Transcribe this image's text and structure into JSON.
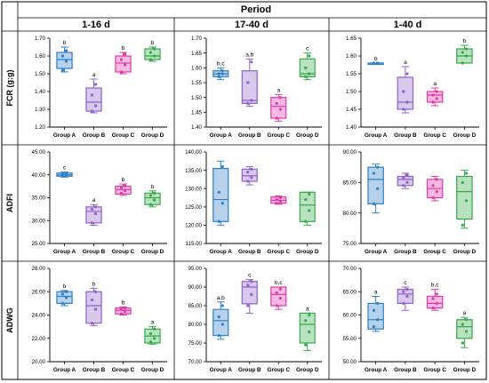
{
  "header": {
    "title": "Period"
  },
  "row_labels": [
    "FCR (g:g)",
    "ADFI",
    "ADWG"
  ],
  "col_labels": [
    "1-16 d",
    "17-40 d",
    "1-40 d"
  ],
  "colors": {
    "Group A": "#2f7fc4",
    "Group B": "#8f62c7",
    "Group C": "#de3aa8",
    "Group D": "#35a84a"
  },
  "chart_data": [
    {
      "type": "box",
      "row": 0,
      "col": 0,
      "ylim": [
        1.2,
        1.7
      ],
      "ticks": [
        1.2,
        1.3,
        1.4,
        1.5,
        1.6,
        1.7
      ],
      "decimals": 2,
      "categories": [
        "Group A",
        "Group B",
        "Group C",
        "Group D"
      ],
      "boxes": [
        {
          "q1": 1.53,
          "median": 1.58,
          "q3": 1.62,
          "min": 1.51,
          "max": 1.65,
          "points": [
            1.52,
            1.57,
            1.6,
            1.63
          ],
          "letter": "b"
        },
        {
          "q1": 1.29,
          "median": 1.34,
          "q3": 1.42,
          "min": 1.28,
          "max": 1.47,
          "points": [
            1.29,
            1.32,
            1.38,
            1.44
          ],
          "letter": "a"
        },
        {
          "q1": 1.51,
          "median": 1.56,
          "q3": 1.6,
          "min": 1.5,
          "max": 1.62,
          "points": [
            1.51,
            1.55,
            1.58,
            1.61
          ],
          "letter": "b"
        },
        {
          "q1": 1.58,
          "median": 1.6,
          "q3": 1.64,
          "min": 1.57,
          "max": 1.65,
          "points": [
            1.58,
            1.6,
            1.62,
            1.64
          ],
          "letter": "b"
        }
      ]
    },
    {
      "type": "box",
      "row": 0,
      "col": 1,
      "ylim": [
        1.4,
        1.7
      ],
      "ticks": [
        1.4,
        1.45,
        1.5,
        1.55,
        1.6,
        1.65,
        1.7
      ],
      "decimals": 2,
      "categories": [
        "Group A",
        "Group B",
        "Group C",
        "Group D"
      ],
      "boxes": [
        {
          "q1": 1.57,
          "median": 1.58,
          "q3": 1.59,
          "min": 1.56,
          "max": 1.6,
          "points": [
            1.57,
            1.58,
            1.58,
            1.59
          ],
          "letter": "b,c"
        },
        {
          "q1": 1.48,
          "median": 1.49,
          "q3": 1.59,
          "min": 1.47,
          "max": 1.63,
          "points": [
            1.48,
            1.49,
            1.55,
            1.62
          ],
          "letter": "a,b"
        },
        {
          "q1": 1.43,
          "median": 1.47,
          "q3": 1.5,
          "min": 1.42,
          "max": 1.51,
          "points": [
            1.43,
            1.46,
            1.48,
            1.5
          ],
          "letter": "a"
        },
        {
          "q1": 1.57,
          "median": 1.58,
          "q3": 1.63,
          "min": 1.56,
          "max": 1.65,
          "points": [
            1.57,
            1.58,
            1.6,
            1.64
          ],
          "letter": "c"
        }
      ]
    },
    {
      "type": "box",
      "row": 0,
      "col": 2,
      "ylim": [
        1.4,
        1.65
      ],
      "ticks": [
        1.4,
        1.45,
        1.5,
        1.55,
        1.6,
        1.65
      ],
      "decimals": 2,
      "categories": [
        "Group A",
        "Group B",
        "Group C",
        "Group D"
      ],
      "boxes": [
        {
          "q1": 1.58,
          "median": 1.58,
          "q3": 1.58,
          "min": 1.58,
          "max": 1.58,
          "points": [
            1.58,
            1.58,
            1.58,
            1.58
          ],
          "letter": "b"
        },
        {
          "q1": 1.45,
          "median": 1.47,
          "q3": 1.54,
          "min": 1.44,
          "max": 1.57,
          "points": [
            1.45,
            1.47,
            1.5,
            1.55
          ],
          "letter": "a"
        },
        {
          "q1": 1.47,
          "median": 1.49,
          "q3": 1.5,
          "min": 1.46,
          "max": 1.51,
          "points": [
            1.47,
            1.48,
            1.49,
            1.5
          ],
          "letter": "a"
        },
        {
          "q1": 1.58,
          "median": 1.6,
          "q3": 1.62,
          "min": 1.58,
          "max": 1.63,
          "points": [
            1.58,
            1.6,
            1.61,
            1.62
          ],
          "letter": "b"
        }
      ]
    },
    {
      "type": "box",
      "row": 1,
      "col": 0,
      "ylim": [
        25.0,
        45.0
      ],
      "ticks": [
        25.0,
        30.0,
        35.0,
        40.0,
        45.0
      ],
      "decimals": 2,
      "categories": [
        "Group A",
        "Group B",
        "Group C",
        "Group D"
      ],
      "boxes": [
        {
          "q1": 39.7,
          "median": 40.0,
          "q3": 40.4,
          "min": 39.5,
          "max": 40.6,
          "points": [
            39.7,
            40.0,
            40.2,
            40.4
          ],
          "letter": "c"
        },
        {
          "q1": 29.5,
          "median": 32.0,
          "q3": 33.0,
          "min": 29.0,
          "max": 33.5,
          "points": [
            29.5,
            31.5,
            32.5,
            33.0
          ],
          "letter": "a"
        },
        {
          "q1": 35.8,
          "median": 36.8,
          "q3": 37.5,
          "min": 35.5,
          "max": 38.0,
          "points": [
            36.0,
            36.5,
            37.2,
            37.6
          ],
          "letter": "b"
        },
        {
          "q1": 33.5,
          "median": 35.0,
          "q3": 36.0,
          "min": 33.0,
          "max": 36.5,
          "points": [
            33.5,
            34.5,
            35.5,
            36.0
          ],
          "letter": "b"
        }
      ]
    },
    {
      "type": "box",
      "row": 1,
      "col": 1,
      "ylim": [
        115.0,
        140.0
      ],
      "ticks": [
        115.0,
        120.0,
        125.0,
        130.0,
        135.0,
        140.0
      ],
      "decimals": 2,
      "categories": [
        "Group A",
        "Group B",
        "Group C",
        "Group D"
      ],
      "boxes": [
        {
          "q1": 121.0,
          "median": 127.0,
          "q3": 135.5,
          "min": 120.0,
          "max": 137.5,
          "points": [
            121.0,
            126.0,
            129.0,
            136.0
          ],
          "letter": ""
        },
        {
          "q1": 132.0,
          "median": 133.5,
          "q3": 135.3,
          "min": 131.0,
          "max": 136.0,
          "points": [
            132.0,
            133.0,
            134.5,
            135.3
          ],
          "letter": ""
        },
        {
          "q1": 126.0,
          "median": 126.8,
          "q3": 127.7,
          "min": 125.7,
          "max": 128.0,
          "points": [
            126.0,
            126.5,
            127.0,
            127.5
          ],
          "letter": ""
        },
        {
          "q1": 121.0,
          "median": 125.5,
          "q3": 129.0,
          "min": 120.0,
          "max": 129.0,
          "points": [
            121.0,
            124.0,
            127.0,
            128.5
          ],
          "letter": ""
        }
      ]
    },
    {
      "type": "box",
      "row": 1,
      "col": 2,
      "ylim": [
        75.0,
        90.0
      ],
      "ticks": [
        75.0,
        80.0,
        85.0,
        90.0
      ],
      "decimals": 2,
      "categories": [
        "Group A",
        "Group B",
        "Group C",
        "Group D"
      ],
      "boxes": [
        {
          "q1": 81.5,
          "median": 85.5,
          "q3": 87.5,
          "min": 80.0,
          "max": 88.0,
          "points": [
            81.5,
            84.0,
            86.5,
            87.5
          ],
          "letter": ""
        },
        {
          "q1": 84.5,
          "median": 85.5,
          "q3": 86.0,
          "min": 84.0,
          "max": 86.5,
          "points": [
            84.5,
            85.0,
            85.8,
            86.2
          ],
          "letter": ""
        },
        {
          "q1": 82.5,
          "median": 84.0,
          "q3": 85.5,
          "min": 82.0,
          "max": 86.0,
          "points": [
            82.5,
            83.5,
            84.5,
            85.5
          ],
          "letter": ""
        },
        {
          "q1": 79.0,
          "median": 83.5,
          "q3": 86.0,
          "min": 77.5,
          "max": 87.0,
          "points": [
            78.0,
            82.0,
            85.0,
            86.5
          ],
          "letter": ""
        }
      ]
    },
    {
      "type": "box",
      "row": 2,
      "col": 0,
      "ylim": [
        20.0,
        28.0
      ],
      "ticks": [
        20.0,
        22.0,
        24.0,
        26.0,
        28.0
      ],
      "decimals": 2,
      "categories": [
        "Group A",
        "Group B",
        "Group C",
        "Group D"
      ],
      "boxes": [
        {
          "q1": 25.0,
          "median": 25.6,
          "q3": 26.0,
          "min": 24.8,
          "max": 26.1,
          "points": [
            25.0,
            25.5,
            25.8,
            26.0
          ],
          "letter": "b"
        },
        {
          "q1": 23.3,
          "median": 24.8,
          "q3": 26.0,
          "min": 23.1,
          "max": 26.3,
          "points": [
            23.3,
            24.5,
            25.3,
            26.0
          ],
          "letter": "b"
        },
        {
          "q1": 24.1,
          "median": 24.4,
          "q3": 24.6,
          "min": 24.0,
          "max": 24.7,
          "points": [
            24.1,
            24.3,
            24.5,
            24.6
          ],
          "letter": "b"
        },
        {
          "q1": 21.6,
          "median": 22.2,
          "q3": 22.8,
          "min": 21.5,
          "max": 23.0,
          "points": [
            21.7,
            22.0,
            22.4,
            22.8
          ],
          "letter": "a"
        }
      ]
    },
    {
      "type": "box",
      "row": 2,
      "col": 1,
      "ylim": [
        70.0,
        95.0
      ],
      "ticks": [
        70.0,
        75.0,
        80.0,
        85.0,
        90.0,
        95.0
      ],
      "decimals": 2,
      "categories": [
        "Group A",
        "Group B",
        "Group C",
        "Group D"
      ],
      "boxes": [
        {
          "q1": 77.0,
          "median": 81.0,
          "q3": 84.0,
          "min": 76.0,
          "max": 86.0,
          "points": [
            77.0,
            80.0,
            82.0,
            85.0
          ],
          "letter": "a,b"
        },
        {
          "q1": 85.5,
          "median": 90.0,
          "q3": 91.5,
          "min": 83.0,
          "max": 92.0,
          "points": [
            85.0,
            88.0,
            90.5,
            91.5
          ],
          "letter": "c"
        },
        {
          "q1": 85.0,
          "median": 88.0,
          "q3": 90.0,
          "min": 84.0,
          "max": 90.0,
          "points": [
            85.0,
            87.0,
            88.5,
            89.5
          ],
          "letter": "b,c"
        },
        {
          "q1": 75.0,
          "median": 80.0,
          "q3": 83.0,
          "min": 73.0,
          "max": 83.0,
          "points": [
            74.5,
            78.0,
            81.0,
            82.5
          ],
          "letter": "a"
        }
      ]
    },
    {
      "type": "box",
      "row": 2,
      "col": 2,
      "ylim": [
        50.0,
        70.0
      ],
      "ticks": [
        50.0,
        55.0,
        60.0,
        65.0,
        70.0
      ],
      "decimals": 2,
      "categories": [
        "Group A",
        "Group B",
        "Group C",
        "Group D"
      ],
      "boxes": [
        {
          "q1": 57.0,
          "median": 59.0,
          "q3": 62.5,
          "min": 56.5,
          "max": 64.0,
          "points": [
            57.5,
            59.0,
            61.0,
            62.5
          ],
          "letter": "a"
        },
        {
          "q1": 62.5,
          "median": 64.5,
          "q3": 65.5,
          "min": 61.0,
          "max": 66.0,
          "points": [
            62.5,
            64.0,
            65.0,
            65.5
          ],
          "letter": "c"
        },
        {
          "q1": 61.5,
          "median": 62.5,
          "q3": 64.0,
          "min": 61.0,
          "max": 65.5,
          "points": [
            61.5,
            62.5,
            63.5,
            64.5
          ],
          "letter": "b,c"
        },
        {
          "q1": 55.0,
          "median": 57.5,
          "q3": 59.0,
          "min": 53.0,
          "max": 59.5,
          "points": [
            54.0,
            56.5,
            58.0,
            59.0
          ],
          "letter": "a"
        }
      ]
    }
  ]
}
